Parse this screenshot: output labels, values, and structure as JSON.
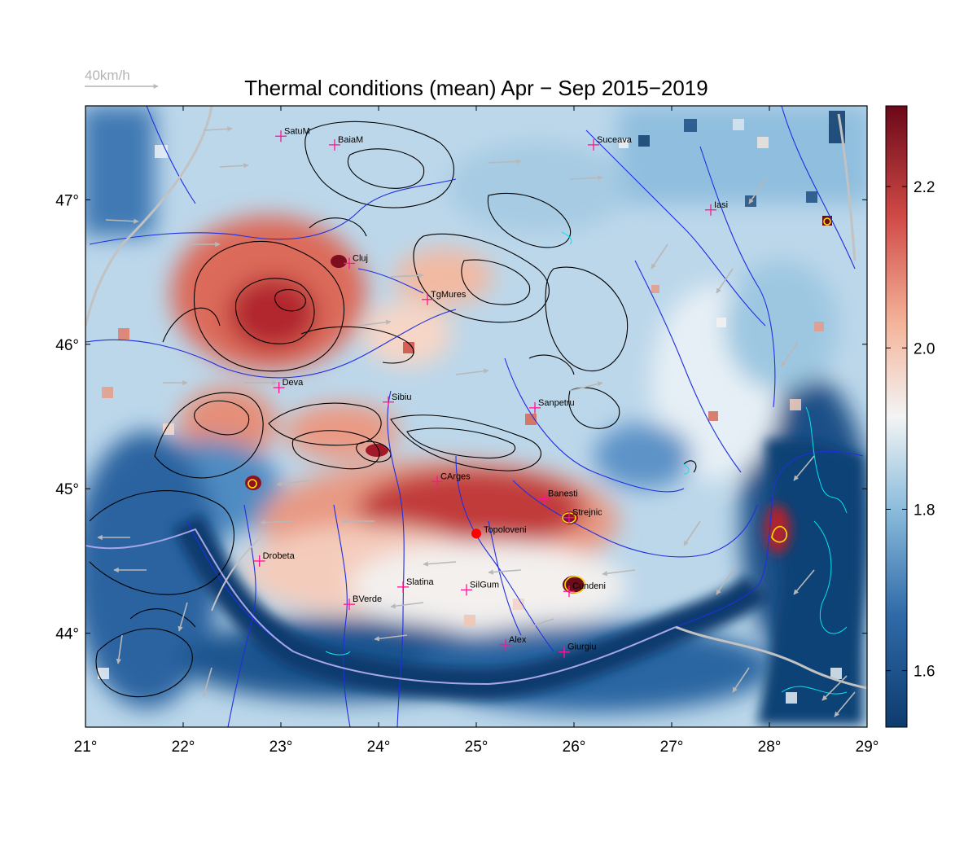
{
  "title": "Thermal conditions (mean) Apr − Sep  2015−2019",
  "wind_scale": {
    "label": "40km/h",
    "color": "#b4b4b4"
  },
  "map": {
    "lon_range": [
      21,
      29
    ],
    "lat_range": [
      43.35,
      47.65
    ],
    "lon_ticks": [
      "21°",
      "22°",
      "23°",
      "24°",
      "25°",
      "26°",
      "27°",
      "28°",
      "29°"
    ],
    "lon_values": [
      21,
      22,
      23,
      24,
      25,
      26,
      27,
      28,
      29
    ],
    "lat_ticks": [
      "44°",
      "45°",
      "46°",
      "47°"
    ],
    "lat_values": [
      44,
      45,
      46,
      47
    ],
    "colors": {
      "low": "#0d3b6e",
      "mid": "#f6f2ef",
      "high": "#7a0a1c",
      "rivers": "#1f2fe0",
      "contours": "#000000",
      "marker": "#ff1493",
      "highlight": "#ff0000",
      "yellow_contour": "#ffe000",
      "cyan_contour": "#00e5ee",
      "wind_arrows": "#b8b8b8"
    }
  },
  "colorbar": {
    "ticks": [
      "2.2",
      "2.0",
      "1.8",
      "1.6"
    ],
    "tick_values": [
      2.2,
      2.0,
      1.8,
      1.6
    ],
    "min": 1.53,
    "max": 2.3
  },
  "cities": [
    {
      "name": "SatuM",
      "lon": 23.0,
      "lat": 47.44
    },
    {
      "name": "BaiaM",
      "lon": 23.55,
      "lat": 47.38
    },
    {
      "name": "Suceava",
      "lon": 26.2,
      "lat": 47.38
    },
    {
      "name": "Iasi",
      "lon": 27.4,
      "lat": 46.93
    },
    {
      "name": "Cluj",
      "lon": 23.7,
      "lat": 46.56
    },
    {
      "name": "TgMures",
      "lon": 24.5,
      "lat": 46.31
    },
    {
      "name": "Deva",
      "lon": 22.98,
      "lat": 45.7
    },
    {
      "name": "Sibiu",
      "lon": 24.1,
      "lat": 45.6
    },
    {
      "name": "Sanpetru",
      "lon": 25.6,
      "lat": 45.56
    },
    {
      "name": "CArges",
      "lon": 24.6,
      "lat": 45.05
    },
    {
      "name": "Banesti",
      "lon": 25.7,
      "lat": 44.93
    },
    {
      "name": "Strejnic",
      "lon": 25.95,
      "lat": 44.8
    },
    {
      "name": "Drobeta",
      "lon": 22.78,
      "lat": 44.5
    },
    {
      "name": "Slatina",
      "lon": 24.25,
      "lat": 44.32
    },
    {
      "name": "SilGum",
      "lon": 24.9,
      "lat": 44.3
    },
    {
      "name": "Cundeni",
      "lon": 25.95,
      "lat": 44.29
    },
    {
      "name": "BVerde",
      "lon": 23.7,
      "lat": 44.2
    },
    {
      "name": "Alex",
      "lon": 25.3,
      "lat": 43.92
    },
    {
      "name": "Giurgiu",
      "lon": 25.9,
      "lat": 43.87
    }
  ],
  "highlight_site": {
    "name": "Topoloveni",
    "lon": 25.0,
    "lat": 44.69
  }
}
